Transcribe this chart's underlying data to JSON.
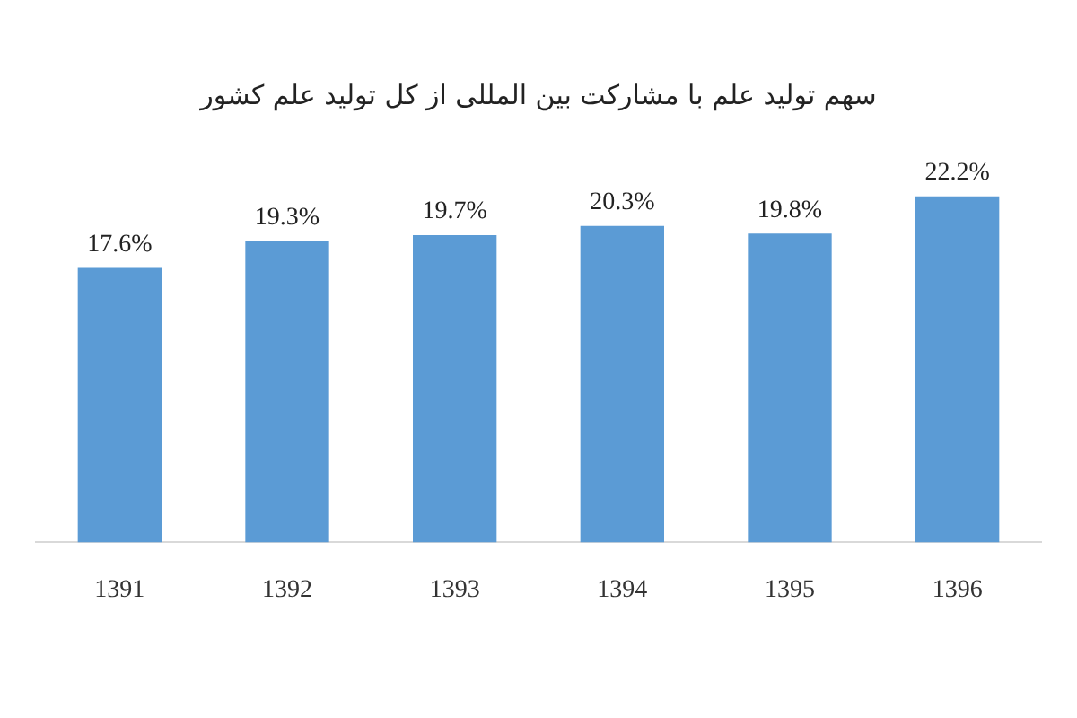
{
  "chart_data": {
    "type": "bar",
    "title": "سهم تولید علم با مشارکت بین المللی از کل تولید علم کشور",
    "categories": [
      "1391",
      "1392",
      "1393",
      "1394",
      "1395",
      "1396"
    ],
    "values": [
      17.6,
      19.3,
      19.7,
      20.3,
      19.8,
      22.2
    ],
    "value_labels": [
      "17.6%",
      "19.3%",
      "19.7%",
      "20.3%",
      "19.8%",
      "22.2%"
    ],
    "color": "#5b9bd5",
    "grid": false,
    "legend": false,
    "tick_labels": "x"
  }
}
